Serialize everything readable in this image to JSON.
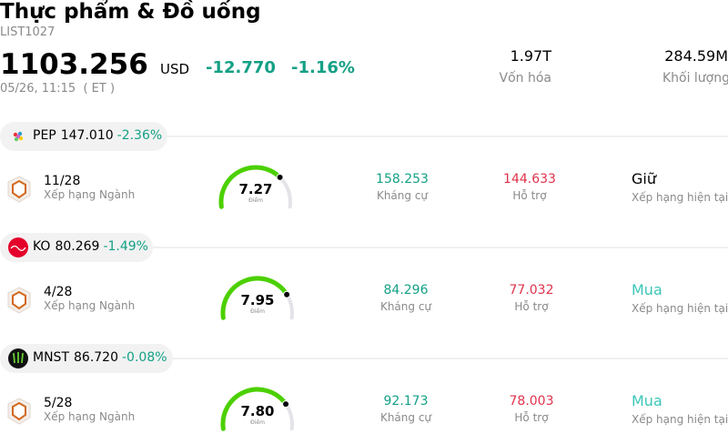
{
  "header": {
    "title": "Thực phẩm & Đồ uống",
    "code": "LIST1027",
    "price": "1103.256",
    "currency": "USD",
    "change": "-12.770",
    "change_pct": "-1.16%",
    "time": "05/26, 11:15  ( ET )"
  },
  "stats": [
    {
      "value": "1.97T",
      "label": "Vốn hóa"
    },
    {
      "value": "284.59M",
      "label": "Khối lượng"
    }
  ],
  "gauge_range": [
    0,
    10
  ],
  "stocks": [
    {
      "ticker": "PEP",
      "price": "147.010",
      "change": "-2.36%",
      "rank": "11/28",
      "rank_label": "Xếp hạng Ngành",
      "score": {
        "value": 7.27,
        "label": "7.27"
      },
      "score_label": "Điểm",
      "resistance": "158.253",
      "resistance_label": "Kháng cự",
      "support": "144.633",
      "support_label": "Hỗ trợ",
      "rating": "Giữ",
      "rating_label": "Xếp hạng hiện tại"
    },
    {
      "ticker": "KO",
      "price": "80.269",
      "change": "-1.49%",
      "rank": "4/28",
      "rank_label": "Xếp hạng Ngành",
      "score": {
        "value": 7.95,
        "label": "7.95"
      },
      "score_label": "Điểm",
      "resistance": "84.296",
      "resistance_label": "Kháng cự",
      "support": "77.032",
      "support_label": "Hỗ trợ",
      "rating": "Mua",
      "rating_label": "Xếp hạng hiện tại"
    },
    {
      "ticker": "MNST",
      "price": "86.720",
      "change": "-0.08%",
      "rank": "5/28",
      "rank_label": "Xếp hạng Ngành",
      "score": {
        "value": 7.8,
        "label": "7.80"
      },
      "score_label": "Điểm",
      "resistance": "92.173",
      "resistance_label": "Kháng cự",
      "support": "78.003",
      "support_label": "Hỗ trợ",
      "rating": "Mua",
      "rating_label": "Xếp hạng hiện tại"
    }
  ]
}
